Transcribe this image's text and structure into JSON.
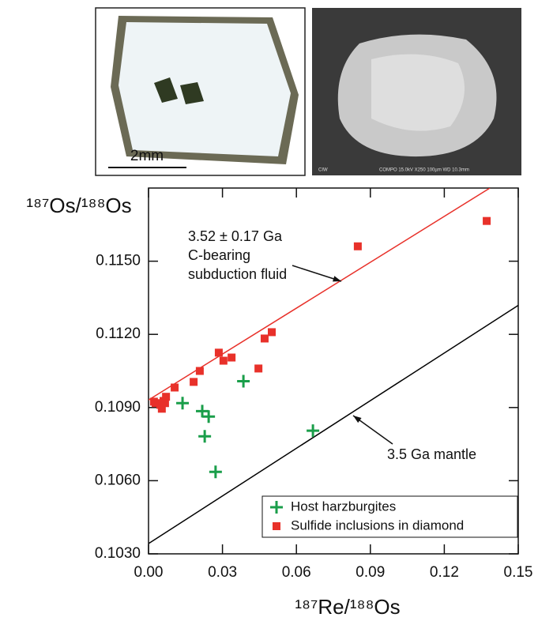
{
  "images": {
    "left_scale_label": "2mm",
    "right_footer": [
      "CIW",
      "COMPO  15.0kV   X250     100µm   WD 10.3mm"
    ]
  },
  "chart_data": {
    "type": "scatter",
    "x_label": "¹⁸⁷Re/¹⁸⁸Os",
    "y_label": "¹⁸⁷Os/¹⁸⁸Os",
    "xlim": [
      0,
      0.15
    ],
    "ylim": [
      0.103,
      0.118
    ],
    "xticks": [
      {
        "value": 0,
        "label": "0.00"
      },
      0.03,
      0.06,
      0.09,
      0.12,
      0.15
    ],
    "yticks": [
      {
        "value": 0.103,
        "label": "0.1030"
      },
      {
        "value": 0.106,
        "label": "0.1060"
      },
      {
        "value": 0.109,
        "label": "0.1090"
      },
      {
        "value": 0.112,
        "label": "0.1120"
      },
      {
        "value": 0.115,
        "label": "0.1150"
      }
    ],
    "legend": "lower right",
    "series": [
      {
        "name": "Host harzburgites",
        "color": "#1a9e4a",
        "marker": "plus",
        "x": [
          0.0138,
          0.0218,
          0.0244,
          0.0228,
          0.0272,
          0.0385,
          0.0667
        ],
        "values": [
          0.10918,
          0.10885,
          0.10863,
          0.10782,
          0.10636,
          0.11008,
          0.10805
        ]
      },
      {
        "name": "Sulfide inclusions in diamond",
        "color": "#e8312a",
        "marker": "square",
        "x": [
          0.0022,
          0.0029,
          0.0048,
          0.0054,
          0.0061,
          0.0071,
          0.0067,
          0.0106,
          0.0183,
          0.0208,
          0.0285,
          0.0304,
          0.0337,
          0.0446,
          0.0471,
          0.05,
          0.0849,
          0.1372
        ],
        "values": [
          0.10924,
          0.10918,
          0.10911,
          0.10895,
          0.10927,
          0.10944,
          0.10918,
          0.10982,
          0.11005,
          0.1105,
          0.11125,
          0.11092,
          0.11105,
          0.1106,
          0.11183,
          0.11209,
          0.11561,
          0.11665
        ]
      }
    ],
    "reference_lines": [
      {
        "color": "#e8312a",
        "x": [
          0,
          0.1385
        ],
        "values": [
          0.10931,
          0.118
        ],
        "label": [
          "3.52 ± 0.17 Ga",
          "C-bearing",
          "subduction fluid"
        ]
      },
      {
        "color": "#000000",
        "x": [
          0,
          0.15
        ],
        "values": [
          0.10342,
          0.11319
        ],
        "label": [
          "3.5 Ga mantle"
        ]
      }
    ]
  }
}
